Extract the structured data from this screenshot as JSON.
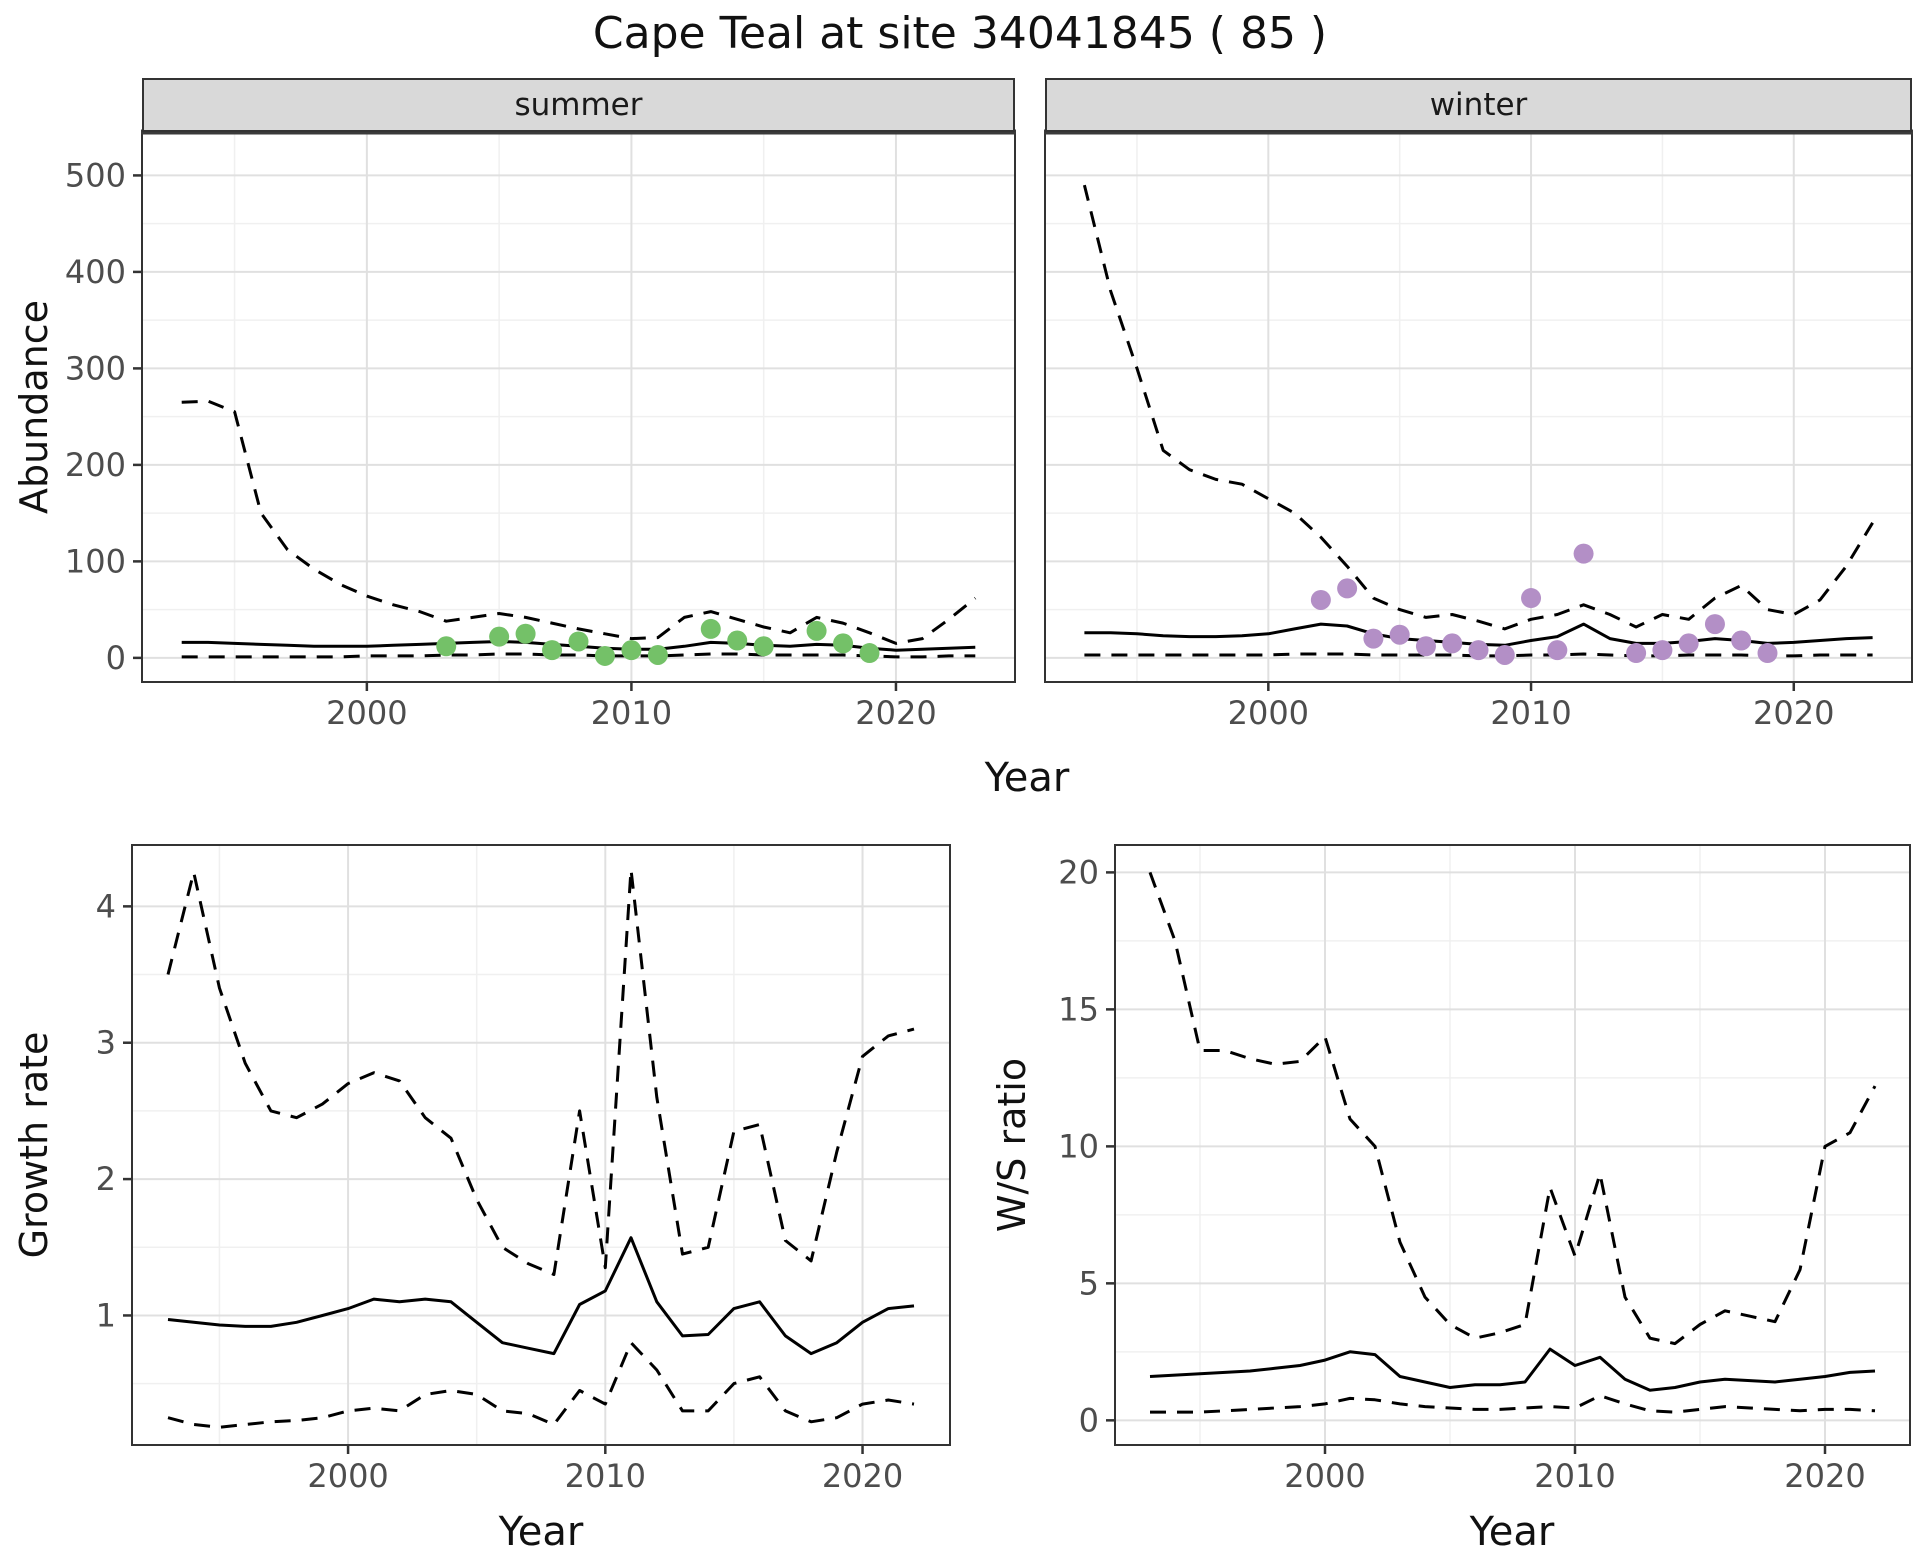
{
  "title": "Cape Teal at site 34041845 ( 85 )",
  "colors": {
    "summer_points": "#74c168",
    "winter_points": "#b38fc6",
    "line": "#000000",
    "grid_major": "#e0e0e0",
    "grid_minor": "#f0f0f0",
    "strip_bg": "#d9d9d9",
    "axis_text": "#4d4d4d",
    "panel_border": "#333333"
  },
  "chart_data": [
    {
      "type": "line",
      "id": "abundance-summer",
      "facet": "summer",
      "xlabel": "Year",
      "ylabel": "Abundance",
      "xlim": [
        1991.5,
        2024.5
      ],
      "ylim": [
        -25,
        545
      ],
      "xticks": [
        2000,
        2010,
        2020
      ],
      "yticks": [
        0,
        100,
        200,
        300,
        400,
        500
      ],
      "x": [
        1993,
        1994,
        1995,
        1996,
        1997,
        1998,
        1999,
        2000,
        2001,
        2002,
        2003,
        2004,
        2005,
        2006,
        2007,
        2008,
        2009,
        2010,
        2011,
        2012,
        2013,
        2014,
        2015,
        2016,
        2017,
        2018,
        2019,
        2020,
        2021,
        2022,
        2023
      ],
      "series": [
        {
          "name": "upper_ci",
          "style": "dashed",
          "values": [
            265,
            266,
            255,
            150,
            112,
            92,
            76,
            64,
            55,
            48,
            38,
            42,
            46,
            42,
            36,
            30,
            25,
            20,
            21,
            42,
            48,
            40,
            32,
            26,
            42,
            36,
            26,
            15,
            20,
            40,
            62
          ]
        },
        {
          "name": "fit",
          "style": "solid",
          "values": [
            16,
            16,
            15,
            14,
            13,
            12,
            12,
            12,
            13,
            14,
            15,
            16,
            17,
            16,
            14,
            12,
            10,
            9,
            9,
            12,
            16,
            15,
            13,
            12,
            14,
            13,
            10,
            8,
            9,
            10,
            11
          ]
        },
        {
          "name": "lower_ci",
          "style": "dashed",
          "values": [
            1,
            1,
            1,
            1,
            1,
            1,
            1,
            2,
            2,
            2,
            3,
            3,
            4,
            4,
            3,
            3,
            2,
            2,
            2,
            3,
            4,
            4,
            3,
            3,
            3,
            3,
            2,
            1,
            1,
            2,
            2
          ]
        }
      ],
      "points": {
        "name": "observed-counts-summer",
        "color": "#74c168",
        "x": [
          2003,
          2005,
          2006,
          2007,
          2008,
          2009,
          2010,
          2011,
          2013,
          2014,
          2015,
          2017,
          2018,
          2019
        ],
        "y": [
          12,
          22,
          25,
          8,
          17,
          2,
          8,
          3,
          30,
          18,
          12,
          28,
          15,
          5
        ]
      }
    },
    {
      "type": "line",
      "id": "abundance-winter",
      "facet": "winter",
      "xlabel": "Year",
      "ylabel": "Abundance",
      "xlim": [
        1991.5,
        2024.5
      ],
      "ylim": [
        -25,
        545
      ],
      "xticks": [
        2000,
        2010,
        2020
      ],
      "yticks": [
        0,
        100,
        200,
        300,
        400,
        500
      ],
      "x": [
        1993,
        1994,
        1995,
        1996,
        1997,
        1998,
        1999,
        2000,
        2001,
        2002,
        2003,
        2004,
        2005,
        2006,
        2007,
        2008,
        2009,
        2010,
        2011,
        2012,
        2013,
        2014,
        2015,
        2016,
        2017,
        2018,
        2019,
        2020,
        2021,
        2022,
        2023
      ],
      "series": [
        {
          "name": "upper_ci",
          "style": "dashed",
          "values": [
            490,
            380,
            300,
            215,
            195,
            185,
            180,
            165,
            150,
            125,
            95,
            62,
            50,
            42,
            45,
            38,
            30,
            40,
            45,
            55,
            45,
            32,
            45,
            40,
            62,
            75,
            50,
            45,
            60,
            95,
            140
          ]
        },
        {
          "name": "fit",
          "style": "solid",
          "values": [
            26,
            26,
            25,
            23,
            22,
            22,
            23,
            25,
            30,
            35,
            33,
            25,
            20,
            18,
            16,
            14,
            13,
            18,
            22,
            35,
            20,
            15,
            15,
            17,
            20,
            18,
            15,
            16,
            18,
            20,
            21
          ]
        },
        {
          "name": "lower_ci",
          "style": "dashed",
          "values": [
            3,
            3,
            3,
            3,
            3,
            3,
            3,
            3,
            4,
            4,
            4,
            3,
            3,
            3,
            3,
            2,
            2,
            3,
            3,
            4,
            3,
            2,
            2,
            3,
            3,
            3,
            2,
            2,
            3,
            3,
            3
          ]
        }
      ],
      "points": {
        "name": "observed-counts-winter",
        "color": "#b38fc6",
        "x": [
          2002,
          2003,
          2004,
          2005,
          2006,
          2007,
          2008,
          2009,
          2010,
          2011,
          2012,
          2014,
          2015,
          2016,
          2017,
          2018,
          2019
        ],
        "y": [
          60,
          72,
          20,
          24,
          12,
          15,
          8,
          3,
          62,
          8,
          108,
          5,
          8,
          15,
          35,
          18,
          5
        ]
      }
    },
    {
      "type": "line",
      "id": "growth-rate",
      "facet": "",
      "xlabel": "Year",
      "ylabel": "Growth rate",
      "xlim": [
        1991.6,
        2023.4
      ],
      "ylim": [
        0.05,
        4.45
      ],
      "xticks": [
        2000,
        2010,
        2020
      ],
      "yticks": [
        1,
        2,
        3,
        4
      ],
      "x": [
        1993,
        1994,
        1995,
        1996,
        1997,
        1998,
        1999,
        2000,
        2001,
        2002,
        2003,
        2004,
        2005,
        2006,
        2007,
        2008,
        2009,
        2010,
        2011,
        2012,
        2013,
        2014,
        2015,
        2016,
        2017,
        2018,
        2019,
        2020,
        2021,
        2022
      ],
      "series": [
        {
          "name": "upper_ci",
          "style": "dashed",
          "values": [
            3.5,
            4.25,
            3.4,
            2.85,
            2.5,
            2.45,
            2.55,
            2.7,
            2.78,
            2.72,
            2.45,
            2.3,
            1.85,
            1.5,
            1.38,
            1.3,
            2.5,
            1.35,
            4.27,
            2.6,
            1.45,
            1.5,
            2.35,
            2.4,
            1.55,
            1.4,
            2.2,
            2.9,
            3.05,
            3.1
          ]
        },
        {
          "name": "fit",
          "style": "solid",
          "values": [
            0.97,
            0.95,
            0.93,
            0.92,
            0.92,
            0.95,
            1.0,
            1.05,
            1.12,
            1.1,
            1.12,
            1.1,
            0.95,
            0.8,
            0.76,
            0.72,
            1.08,
            1.18,
            1.57,
            1.1,
            0.85,
            0.86,
            1.05,
            1.1,
            0.85,
            0.72,
            0.8,
            0.95,
            1.05,
            1.07
          ]
        },
        {
          "name": "lower_ci",
          "style": "dashed",
          "values": [
            0.25,
            0.2,
            0.18,
            0.2,
            0.22,
            0.23,
            0.25,
            0.3,
            0.32,
            0.3,
            0.42,
            0.45,
            0.42,
            0.3,
            0.28,
            0.2,
            0.45,
            0.35,
            0.8,
            0.6,
            0.3,
            0.3,
            0.5,
            0.55,
            0.3,
            0.22,
            0.25,
            0.35,
            0.38,
            0.35
          ]
        }
      ]
    },
    {
      "type": "line",
      "id": "ws-ratio",
      "facet": "",
      "xlabel": "Year",
      "ylabel": "W/S ratio",
      "xlim": [
        1991.6,
        2023.4
      ],
      "ylim": [
        -0.9,
        21
      ],
      "xticks": [
        2000,
        2010,
        2020
      ],
      "yticks": [
        0,
        5,
        10,
        15,
        20
      ],
      "x": [
        1993,
        1994,
        1995,
        1996,
        1997,
        1998,
        1999,
        2000,
        2001,
        2002,
        2003,
        2004,
        2005,
        2006,
        2007,
        2008,
        2009,
        2010,
        2011,
        2012,
        2013,
        2014,
        2015,
        2016,
        2017,
        2018,
        2019,
        2020,
        2021,
        2022
      ],
      "series": [
        {
          "name": "upper_ci",
          "style": "dashed",
          "values": [
            20,
            17.5,
            13.5,
            13.5,
            13.2,
            13,
            13.1,
            14,
            11,
            10,
            6.5,
            4.5,
            3.5,
            3,
            3.2,
            3.5,
            8.5,
            6,
            9,
            4.5,
            3,
            2.8,
            3.5,
            4,
            3.8,
            3.6,
            5.5,
            10,
            10.5,
            12.2
          ]
        },
        {
          "name": "fit",
          "style": "solid",
          "values": [
            1.6,
            1.65,
            1.7,
            1.75,
            1.8,
            1.9,
            2.0,
            2.2,
            2.5,
            2.4,
            1.6,
            1.4,
            1.2,
            1.3,
            1.3,
            1.4,
            2.6,
            2.0,
            2.3,
            1.5,
            1.1,
            1.2,
            1.4,
            1.5,
            1.45,
            1.4,
            1.5,
            1.6,
            1.75,
            1.8
          ]
        },
        {
          "name": "lower_ci",
          "style": "dashed",
          "values": [
            0.3,
            0.3,
            0.3,
            0.35,
            0.4,
            0.45,
            0.5,
            0.6,
            0.8,
            0.75,
            0.6,
            0.5,
            0.45,
            0.4,
            0.4,
            0.45,
            0.5,
            0.45,
            0.9,
            0.6,
            0.35,
            0.3,
            0.4,
            0.5,
            0.45,
            0.4,
            0.35,
            0.4,
            0.4,
            0.35
          ]
        }
      ]
    }
  ]
}
